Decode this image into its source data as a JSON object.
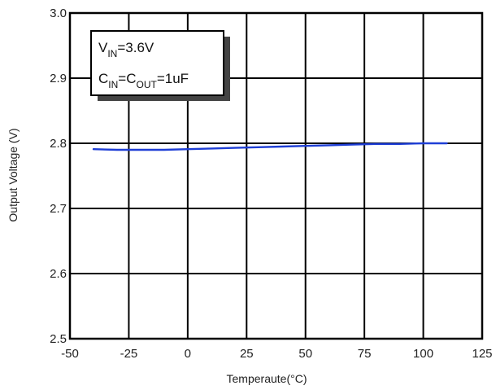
{
  "chart_data": {
    "type": "line",
    "title": "",
    "xlabel": "Temperaute(°C)",
    "ylabel": "Output Voltage (V)",
    "xlim": [
      -50,
      125
    ],
    "ylim": [
      2.5,
      3.0
    ],
    "xticks": [
      "-50",
      "-25",
      "0",
      "25",
      "50",
      "75",
      "100",
      "125"
    ],
    "yticks": [
      "2.5",
      "2.6",
      "2.7",
      "2.8",
      "2.9",
      "3.0"
    ],
    "grid": true,
    "series": [
      {
        "color": "#1f3fd6",
        "x": [
          -40,
          -30,
          -20,
          -10,
          0,
          10,
          20,
          30,
          40,
          50,
          60,
          70,
          80,
          90,
          100,
          110
        ],
        "y": [
          2.791,
          2.79,
          2.79,
          2.79,
          2.791,
          2.792,
          2.793,
          2.794,
          2.795,
          2.796,
          2.797,
          2.798,
          2.799,
          2.799,
          2.8,
          2.8
        ]
      }
    ],
    "annotation": {
      "line1": {
        "main": "V",
        "sub": "IN",
        "rest": "=3.6V"
      },
      "line2": {
        "main1": "C",
        "sub1": "IN",
        "mid": "=C",
        "sub2": "OUT",
        "rest": "=1uF"
      }
    }
  }
}
